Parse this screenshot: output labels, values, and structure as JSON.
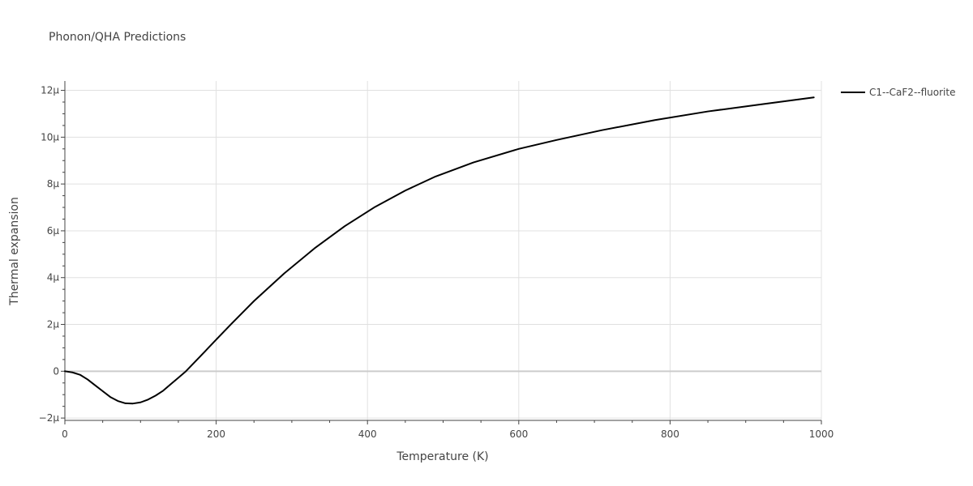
{
  "chart_data": {
    "type": "line",
    "title": "Phonon/QHA Predictions",
    "xlabel": "Temperature (K)",
    "ylabel": "Thermal expansion",
    "xlim": [
      0,
      1000
    ],
    "ylim": [
      -2.1e-06,
      1.24e-05
    ],
    "x_ticks": [
      0,
      200,
      400,
      600,
      800,
      1000
    ],
    "x_tick_labels": [
      "0",
      "200",
      "400",
      "600",
      "800",
      "1000"
    ],
    "x_minor_ticks": [
      50,
      100,
      150,
      250,
      300,
      350,
      450,
      500,
      550,
      650,
      700,
      750,
      850,
      900,
      950
    ],
    "y_ticks": [
      -2e-06,
      0,
      2e-06,
      4e-06,
      6e-06,
      8e-06,
      1e-05,
      1.2e-05
    ],
    "y_tick_labels": [
      "−2μ",
      "0",
      "2μ",
      "4μ",
      "6μ",
      "8μ",
      "10μ",
      "12μ"
    ],
    "y_minor_ticks": [
      -1.5e-06,
      -1e-06,
      -5e-07,
      5e-07,
      1e-06,
      1.5e-06,
      2.5e-06,
      3e-06,
      3.5e-06,
      4.5e-06,
      5e-06,
      5.5e-06,
      6.5e-06,
      7e-06,
      7.5e-06,
      8.5e-06,
      9e-06,
      9.5e-06,
      1.05e-05,
      1.1e-05,
      1.15e-05
    ],
    "grid": true,
    "legend_position": "top-right",
    "colors": {
      "grid": "#e0e0e0",
      "zeroline": "#cccccc",
      "axis": "#444444",
      "series": "#000000"
    },
    "series": [
      {
        "name": "C1--CaF2--fluorite",
        "color": "#000000",
        "x": [
          0,
          10,
          20,
          30,
          40,
          50,
          60,
          70,
          80,
          90,
          100,
          110,
          120,
          130,
          140,
          150,
          160,
          180,
          200,
          220,
          250,
          290,
          330,
          370,
          410,
          450,
          490,
          540,
          600,
          650,
          710,
          780,
          850,
          920,
          990
        ],
        "y": [
          0,
          -5e-08,
          -1.5e-07,
          -3.5e-07,
          -6e-07,
          -8.5e-07,
          -1.1e-06,
          -1.27e-06,
          -1.37e-06,
          -1.38e-06,
          -1.33e-06,
          -1.21e-06,
          -1.04e-06,
          -8.3e-07,
          -5.5e-07,
          -2.8e-07,
          0.0,
          6.7e-07,
          1.35e-06,
          2.02e-06,
          3e-06,
          4.18e-06,
          5.25e-06,
          6.2e-06,
          7.02e-06,
          7.72e-06,
          8.32e-06,
          8.92e-06,
          9.5e-06,
          9.88e-06,
          1.03e-05,
          1.073e-05,
          1.11e-05,
          1.14e-05,
          1.17e-05
        ]
      }
    ]
  }
}
